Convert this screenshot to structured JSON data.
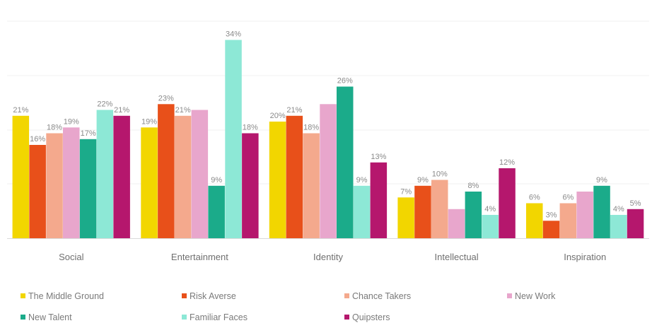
{
  "chart_data": {
    "type": "bar",
    "categories": [
      "Social",
      "Entertainment",
      "Identity",
      "Intellectual",
      "Inspiration"
    ],
    "ylim": [
      0,
      36
    ],
    "grid": true,
    "legend_position": "bottom",
    "series": [
      {
        "name": "The Middle Ground",
        "color": "#f2d600",
        "values": [
          21,
          19,
          20,
          7,
          6
        ],
        "labels": [
          "21%",
          "19%",
          "20%",
          "7%",
          "6%"
        ]
      },
      {
        "name": "Risk Averse",
        "color": "#e8501a",
        "values": [
          16,
          23,
          21,
          9,
          3
        ],
        "labels": [
          "16%",
          "23%",
          "21%",
          "9%",
          "3%"
        ]
      },
      {
        "name": "Chance Takers",
        "color": "#f4a98d",
        "values": [
          18,
          21,
          18,
          10,
          6
        ],
        "labels": [
          "18%",
          "21%",
          "18%",
          "10%",
          "6%"
        ]
      },
      {
        "name": "New Work",
        "color": "#e8a6cc",
        "values": [
          19,
          22,
          23,
          5,
          8
        ],
        "labels": [
          "19%",
          "",
          "",
          "",
          ""
        ]
      },
      {
        "name": "New Talent",
        "color": "#1bab8a",
        "values": [
          17,
          9,
          26,
          8,
          9
        ],
        "labels": [
          "17%",
          "9%",
          "26%",
          "8%",
          "9%"
        ]
      },
      {
        "name": "Familiar Faces",
        "color": "#8de8d6",
        "values": [
          22,
          34,
          9,
          4,
          4
        ],
        "labels": [
          "22%",
          "34%",
          "9%",
          "4%",
          "4%"
        ]
      },
      {
        "name": "Quipsters",
        "color": "#b5176d",
        "values": [
          21,
          18,
          13,
          12,
          5
        ],
        "labels": [
          "21%",
          "18%",
          "13%",
          "12%",
          "5%"
        ]
      }
    ]
  }
}
